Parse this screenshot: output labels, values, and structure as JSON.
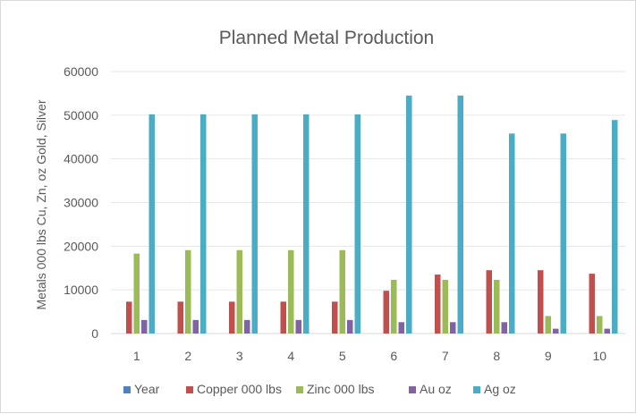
{
  "chart_data": {
    "type": "bar",
    "title": "Planned Metal Production",
    "xlabel": "",
    "ylabel": "Metals 000 lbs Cu, Zn, oz Gold, Silver",
    "ylim": [
      0,
      60000
    ],
    "yticks": [
      0,
      10000,
      20000,
      30000,
      40000,
      50000,
      60000
    ],
    "categories": [
      "1",
      "2",
      "3",
      "4",
      "5",
      "6",
      "7",
      "8",
      "9",
      "10"
    ],
    "grid": true,
    "legend_position": "bottom",
    "series": [
      {
        "name": "Year",
        "color": "#4f81bd",
        "values": [
          1,
          2,
          3,
          4,
          5,
          6,
          7,
          8,
          9,
          10
        ]
      },
      {
        "name": "Copper 000 lbs",
        "color": "#c0504d",
        "values": [
          7300,
          7300,
          7300,
          7300,
          7300,
          9800,
          13500,
          14500,
          14500,
          13700
        ]
      },
      {
        "name": "Zinc 000  lbs",
        "color": "#9bbb59",
        "values": [
          18300,
          19100,
          19100,
          19100,
          19100,
          12300,
          12300,
          12300,
          4000,
          4000
        ]
      },
      {
        "name": "Au oz",
        "color": "#8064a2",
        "values": [
          3100,
          3100,
          3100,
          3100,
          3100,
          2600,
          2600,
          2600,
          1100,
          1100
        ]
      },
      {
        "name": "Ag oz",
        "color": "#4bacc6",
        "values": [
          50200,
          50200,
          50200,
          50200,
          50200,
          54500,
          54500,
          45800,
          45800,
          48900
        ]
      }
    ]
  }
}
